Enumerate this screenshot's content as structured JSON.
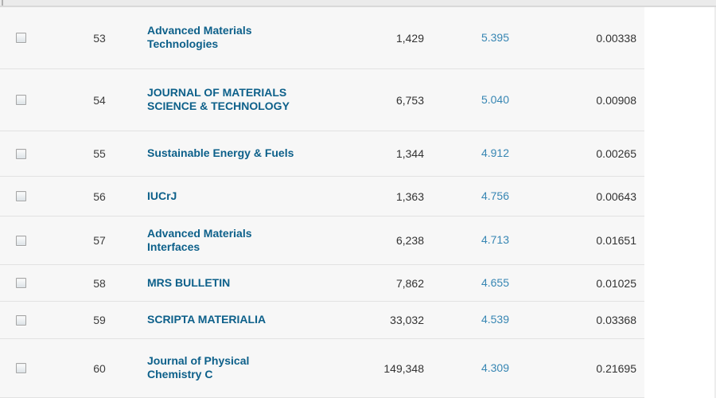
{
  "colors": {
    "journal_link": "#0d608a",
    "impact_factor_link": "#3786b3",
    "row_background": "#f7f7f7",
    "separator": "#e2e2e2",
    "header_strip": "#ebebeb"
  },
  "table": {
    "rows": [
      {
        "rank": "53",
        "name_lines": [
          "Advanced Materials",
          "Technologies"
        ],
        "total_cites": "1,429",
        "impact_factor": "5.395",
        "eigenfactor": "0.00338"
      },
      {
        "rank": "54",
        "name_lines": [
          "JOURNAL OF MATERIALS",
          "SCIENCE & TECHNOLOGY"
        ],
        "total_cites": "6,753",
        "impact_factor": "5.040",
        "eigenfactor": "0.00908"
      },
      {
        "rank": "55",
        "name_lines": [
          "Sustainable Energy & Fuels"
        ],
        "total_cites": "1,344",
        "impact_factor": "4.912",
        "eigenfactor": "0.00265"
      },
      {
        "rank": "56",
        "name_lines": [
          "IUCrJ"
        ],
        "total_cites": "1,363",
        "impact_factor": "4.756",
        "eigenfactor": "0.00643"
      },
      {
        "rank": "57",
        "name_lines": [
          "Advanced Materials",
          "Interfaces"
        ],
        "total_cites": "6,238",
        "impact_factor": "4.713",
        "eigenfactor": "0.01651"
      },
      {
        "rank": "58",
        "name_lines": [
          "MRS BULLETIN"
        ],
        "total_cites": "7,862",
        "impact_factor": "4.655",
        "eigenfactor": "0.01025"
      },
      {
        "rank": "59",
        "name_lines": [
          "SCRIPTA MATERIALIA"
        ],
        "total_cites": "33,032",
        "impact_factor": "4.539",
        "eigenfactor": "0.03368"
      },
      {
        "rank": "60",
        "name_lines": [
          "Journal of Physical",
          "Chemistry C"
        ],
        "total_cites": "149,348",
        "impact_factor": "4.309",
        "eigenfactor": "0.21695"
      }
    ]
  }
}
